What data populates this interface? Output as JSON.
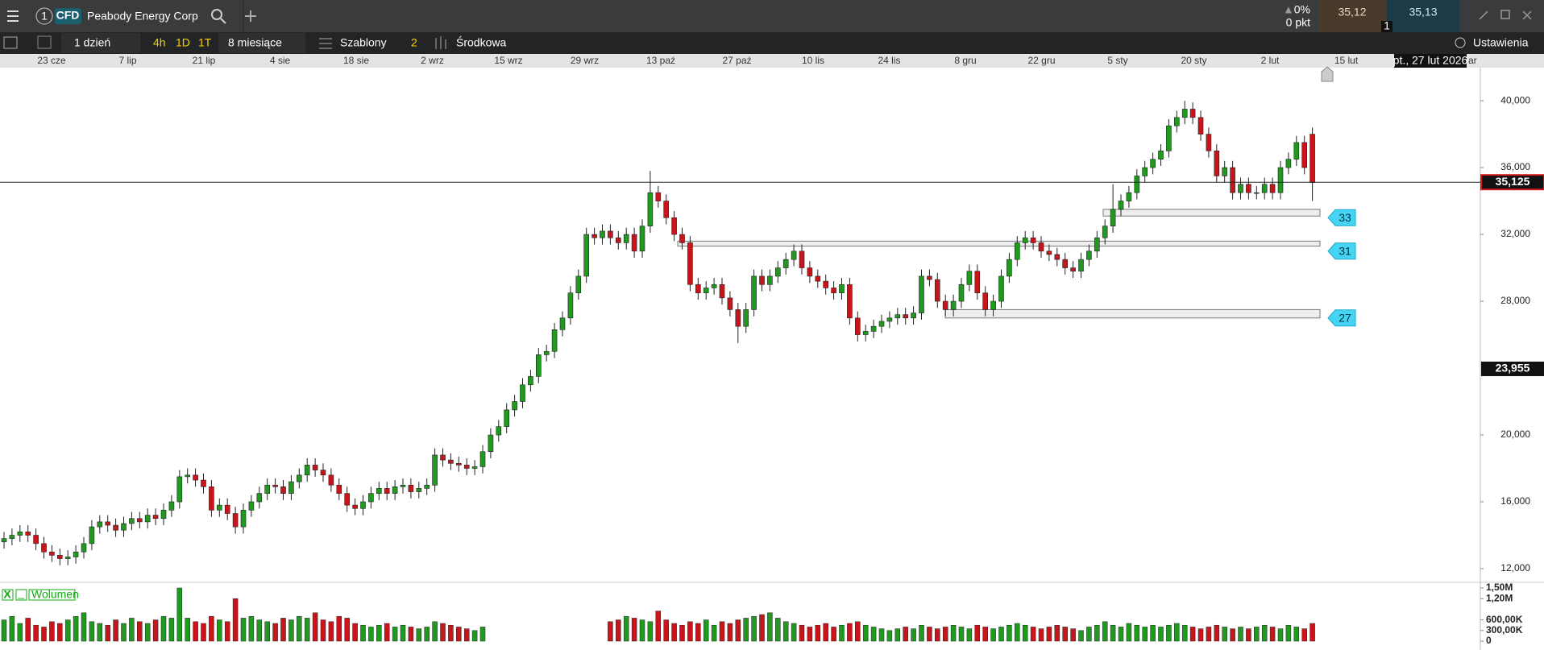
{
  "header": {
    "menu_number": "1",
    "instrument_type": "CFD",
    "instrument_name": "Peabody Energy Corp",
    "change_percent": "0%",
    "change_points": "0 pkt",
    "sell_price": "35,12",
    "buy_price": "35,13",
    "quantity": "1"
  },
  "toolbar": {
    "interval": "1 dzień",
    "quick_intervals": [
      "4h",
      "1D",
      "1T"
    ],
    "range": "8 miesiące",
    "templates": "Szablony",
    "indicator_count": "2",
    "chart_type": "Środkowa",
    "settings": "Ustawienia"
  },
  "chart_data": {
    "type": "candlestick",
    "x_tick_labels": [
      "23 cze",
      "7 lip",
      "21 lip",
      "4 sie",
      "18 sie",
      "2 wrz",
      "15 wrz",
      "29 wrz",
      "13 paź",
      "27 paź",
      "10 lis",
      "24 lis",
      "8 gru",
      "22 gru",
      "5 sty",
      "20 sty",
      "2 lut",
      "15 lut"
    ],
    "cursor_date": "pt., 27 lut 2026",
    "cursor_overflow": "ar",
    "ylim": [
      11.18,
      41.98
    ],
    "yticks": [
      {
        "value": 12,
        "label": "12,000"
      },
      {
        "value": 16,
        "label": "16,000"
      },
      {
        "value": 20,
        "label": "20,000"
      },
      {
        "value": 28,
        "label": "28,000"
      },
      {
        "value": 32,
        "label": "32,000"
      },
      {
        "value": 36,
        "label": "36,000"
      },
      {
        "value": 40,
        "label": "40,000"
      }
    ],
    "last_price": {
      "value": 35.125,
      "label": "35,125"
    },
    "crosshair_price": {
      "value": 23.955,
      "label": "23,955"
    },
    "up_color": "#1f9a1f",
    "down_color": "#c8151b",
    "zones": [
      {
        "level": 33,
        "top": 33.5,
        "bottom": 33.1
      },
      {
        "level": 31,
        "top": 31.6,
        "bottom": 31.3
      },
      {
        "level": 27,
        "top": 27.5,
        "bottom": 27.0
      }
    ],
    "open": [
      13.6,
      13.8,
      14.0,
      14.2,
      14.0,
      13.5,
      13.0,
      12.8,
      12.6,
      12.7,
      13.0,
      13.5,
      14.5,
      14.8,
      14.6,
      14.3,
      14.7,
      15.0,
      14.8,
      15.2,
      15.0,
      15.5,
      16.0,
      17.5,
      17.6,
      17.3,
      16.9,
      15.5,
      15.8,
      15.3,
      14.5,
      15.5,
      16.0,
      16.5,
      17.0,
      16.9,
      16.5,
      17.2,
      17.6,
      18.2,
      17.9,
      17.6,
      17.0,
      16.5,
      15.8,
      15.6,
      16.0,
      16.5,
      16.8,
      16.5,
      16.9,
      17.0,
      16.6,
      16.8,
      17.0,
      18.8,
      18.5,
      18.3,
      18.2,
      18.0,
      18.1,
      19.0,
      20.0,
      20.5,
      21.5,
      22.0,
      23.0,
      23.5,
      24.8,
      25.0,
      26.3,
      27.0,
      28.5,
      29.5,
      32.0,
      31.8,
      32.2,
      31.8,
      31.5,
      32.0,
      31.0,
      32.5,
      34.5,
      34.0,
      33.0,
      32.0,
      31.5,
      29.0,
      28.5,
      28.8,
      29.0,
      28.2,
      27.5,
      26.5,
      27.5,
      29.5,
      29.0,
      29.5,
      30.0,
      30.5,
      31.0,
      30.0,
      29.5,
      29.2,
      28.8,
      28.5,
      29.0,
      27.0,
      26.0,
      26.2,
      26.5,
      26.8,
      27.0,
      27.2,
      27.0,
      27.3,
      29.5,
      29.3,
      28.0,
      27.5,
      28.0,
      29.0,
      29.8,
      28.5,
      27.5,
      28.0,
      29.5,
      30.5,
      31.5,
      31.8,
      31.5,
      31.0,
      30.8,
      30.5,
      30.0,
      29.8,
      30.5,
      31.0,
      31.8,
      32.5,
      33.5,
      34.0,
      34.5,
      35.5,
      36.0,
      36.5,
      37.0,
      38.5,
      39.0,
      39.5,
      39.0,
      38.0,
      37.0,
      35.5,
      36.0,
      34.5,
      35.0,
      34.5,
      34.5,
      35.0,
      34.5,
      36.0,
      36.5,
      37.5,
      38.0
    ],
    "high": [
      14.2,
      14.4,
      14.6,
      14.6,
      14.4,
      13.9,
      13.4,
      13.2,
      13.1,
      13.4,
      13.9,
      14.9,
      15.2,
      15.2,
      15.0,
      15.1,
      15.4,
      15.4,
      15.6,
      15.6,
      15.9,
      16.4,
      17.9,
      18.0,
      18.0,
      17.7,
      17.3,
      16.2,
      16.2,
      15.7,
      15.9,
      16.4,
      16.9,
      17.4,
      17.4,
      17.3,
      17.6,
      18.0,
      18.6,
      18.6,
      18.3,
      18.0,
      17.4,
      16.9,
      16.2,
      16.4,
      16.9,
      17.2,
      17.2,
      17.3,
      17.4,
      17.4,
      17.2,
      17.4,
      19.2,
      19.2,
      18.9,
      18.7,
      18.6,
      18.5,
      19.4,
      20.4,
      20.9,
      21.9,
      22.4,
      23.4,
      23.9,
      25.2,
      25.4,
      26.7,
      27.4,
      28.9,
      29.9,
      32.4,
      32.4,
      32.6,
      32.6,
      32.2,
      32.4,
      32.4,
      32.9,
      35.8,
      34.9,
      34.4,
      33.4,
      32.4,
      31.9,
      29.4,
      29.2,
      29.4,
      29.4,
      28.6,
      27.9,
      27.9,
      29.9,
      29.9,
      29.9,
      30.4,
      30.9,
      31.4,
      31.4,
      30.4,
      29.9,
      29.6,
      29.2,
      29.4,
      29.4,
      27.4,
      26.6,
      26.9,
      27.2,
      27.4,
      27.6,
      27.6,
      27.7,
      29.9,
      29.9,
      29.7,
      28.4,
      28.4,
      29.4,
      30.2,
      30.2,
      28.9,
      28.4,
      29.9,
      30.9,
      31.9,
      32.2,
      32.2,
      31.9,
      31.4,
      31.2,
      30.9,
      30.4,
      30.9,
      31.4,
      32.2,
      32.9,
      35.0,
      34.4,
      34.9,
      35.9,
      36.4,
      36.9,
      37.4,
      38.9,
      39.4,
      40.0,
      39.9,
      39.4,
      38.4,
      37.4,
      36.4,
      36.4,
      35.4,
      35.4,
      34.9,
      35.4,
      35.4,
      36.4,
      36.9,
      37.9,
      37.9,
      38.4
    ],
    "low": [
      13.2,
      13.4,
      13.6,
      13.6,
      13.1,
      12.6,
      12.4,
      12.2,
      12.2,
      12.3,
      12.6,
      13.1,
      14.1,
      14.2,
      13.9,
      13.9,
      14.3,
      14.4,
      14.4,
      14.6,
      14.6,
      15.1,
      15.6,
      17.1,
      16.9,
      16.5,
      15.1,
      15.1,
      14.9,
      14.1,
      14.1,
      15.1,
      15.6,
      16.1,
      16.5,
      16.1,
      16.1,
      16.8,
      17.2,
      17.5,
      17.2,
      16.6,
      16.1,
      15.4,
      15.2,
      15.2,
      15.6,
      16.1,
      16.1,
      16.1,
      16.5,
      16.2,
      16.2,
      16.4,
      16.6,
      18.1,
      17.9,
      17.8,
      17.6,
      17.6,
      17.7,
      18.6,
      19.6,
      20.1,
      21.1,
      21.6,
      22.6,
      23.1,
      24.4,
      24.6,
      25.9,
      26.6,
      28.1,
      29.1,
      31.4,
      31.4,
      31.4,
      31.1,
      31.1,
      30.6,
      30.6,
      32.1,
      33.6,
      32.6,
      31.6,
      31.1,
      28.6,
      28.1,
      28.1,
      28.4,
      27.8,
      27.1,
      25.5,
      26.1,
      27.1,
      28.6,
      28.6,
      29.1,
      29.6,
      30.1,
      29.6,
      29.1,
      28.8,
      28.4,
      28.1,
      28.1,
      26.6,
      25.6,
      25.6,
      25.8,
      26.1,
      26.4,
      26.6,
      26.6,
      26.6,
      26.9,
      28.9,
      27.6,
      27.1,
      27.1,
      27.6,
      28.6,
      28.1,
      27.1,
      27.1,
      27.6,
      29.1,
      30.1,
      31.1,
      31.1,
      30.6,
      30.4,
      30.1,
      29.6,
      29.4,
      29.4,
      30.1,
      30.6,
      31.4,
      32.1,
      33.1,
      33.6,
      34.1,
      35.1,
      35.6,
      36.1,
      36.6,
      38.1,
      38.6,
      38.6,
      37.6,
      36.6,
      35.1,
      35.1,
      34.1,
      34.1,
      34.1,
      34.1,
      34.1,
      34.1,
      34.1,
      35.6,
      36.1,
      35.6,
      34.0
    ],
    "close": [
      13.8,
      14.0,
      14.2,
      14.0,
      13.5,
      13.0,
      12.8,
      12.6,
      12.7,
      13.0,
      13.5,
      14.5,
      14.8,
      14.6,
      14.3,
      14.7,
      15.0,
      14.8,
      15.2,
      15.0,
      15.5,
      16.0,
      17.5,
      17.6,
      17.3,
      16.9,
      15.5,
      15.8,
      15.3,
      14.5,
      15.5,
      16.0,
      16.5,
      17.0,
      16.9,
      16.5,
      17.2,
      17.6,
      18.2,
      17.9,
      17.6,
      17.0,
      16.5,
      15.8,
      15.6,
      16.0,
      16.5,
      16.8,
      16.5,
      16.9,
      17.0,
      16.6,
      16.8,
      17.0,
      18.8,
      18.5,
      18.3,
      18.2,
      18.0,
      18.1,
      19.0,
      20.0,
      20.5,
      21.5,
      22.0,
      23.0,
      23.5,
      24.8,
      25.0,
      26.3,
      27.0,
      28.5,
      29.5,
      32.0,
      31.8,
      32.2,
      31.8,
      31.5,
      32.0,
      31.0,
      32.5,
      34.5,
      34.0,
      33.0,
      32.0,
      31.5,
      29.0,
      28.5,
      28.8,
      29.0,
      28.2,
      27.5,
      26.5,
      27.5,
      29.5,
      29.0,
      29.5,
      30.0,
      30.5,
      31.0,
      30.0,
      29.5,
      29.2,
      28.8,
      28.5,
      29.0,
      27.0,
      26.0,
      26.2,
      26.5,
      26.8,
      27.0,
      27.2,
      27.0,
      27.3,
      29.5,
      29.3,
      28.0,
      27.5,
      28.0,
      29.0,
      29.8,
      28.5,
      27.5,
      28.0,
      29.5,
      30.5,
      31.5,
      31.8,
      31.5,
      31.0,
      30.8,
      30.5,
      30.0,
      29.8,
      30.5,
      31.0,
      31.8,
      32.5,
      33.5,
      34.0,
      34.5,
      35.5,
      36.0,
      36.5,
      37.0,
      38.5,
      39.0,
      39.5,
      39.0,
      38.0,
      37.0,
      35.5,
      36.0,
      34.5,
      35.0,
      34.5,
      34.5,
      35.0,
      34.5,
      36.0,
      36.5,
      37.5,
      36.0,
      35.1
    ],
    "volume": [
      600000,
      700000,
      500000,
      650000,
      450000,
      400000,
      550000,
      500000,
      600000,
      700000,
      800000,
      550000,
      500000,
      450000,
      600000,
      500000,
      650000,
      550000,
      500000,
      600000,
      700000,
      650000,
      1500000,
      650000,
      550000,
      500000,
      700000,
      600000,
      550000,
      1200000,
      650000,
      700000,
      600000,
      550000,
      500000,
      650000,
      600000,
      700000,
      650000,
      800000,
      600000,
      550000,
      700000,
      650000,
      500000,
      450000,
      400000,
      450000,
      500000,
      400000,
      450000,
      400000,
      350000,
      400000,
      550000,
      500000,
      450000,
      400000,
      350000,
      300000,
      400000,
      null,
      null,
      null,
      null,
      null,
      null,
      null,
      null,
      null,
      null,
      null,
      null,
      null,
      null,
      null,
      550000,
      600000,
      700000,
      650000,
      600000,
      550000,
      850000,
      600000,
      500000,
      450000,
      550000,
      500000,
      600000,
      450000,
      550000,
      500000,
      600000,
      650000,
      700000,
      750000,
      800000,
      650000,
      550000,
      500000,
      450000,
      400000,
      450000,
      500000,
      400000,
      450000,
      500000,
      550000,
      450000,
      400000,
      350000,
      300000,
      350000,
      400000,
      350000,
      450000,
      400000,
      350000,
      400000,
      450000,
      400000,
      350000,
      450000,
      400000,
      350000,
      400000,
      450000,
      500000,
      450000,
      400000,
      350000,
      400000,
      450000,
      400000,
      350000,
      300000,
      400000,
      450000,
      550000,
      450000,
      400000,
      500000,
      450000,
      400000,
      450000,
      400000,
      450000,
      500000,
      450000,
      400000,
      350000,
      400000,
      450000,
      400000,
      350000,
      400000,
      350000,
      400000,
      450000,
      400000,
      350000,
      450000,
      400000,
      350000,
      500000
    ],
    "volume_panel": {
      "title": "Wolumen",
      "close_button": "X",
      "minimize_button": "_"
    },
    "volume_ylim": [
      -250000,
      1660000
    ],
    "volume_yticks": [
      0,
      {
        "value": 300000,
        "label": "300,00K"
      },
      {
        "value": 600000,
        "label": "600,00K"
      },
      {
        "value": 1200000,
        "label": "1,20M"
      },
      {
        "value": 1500000,
        "label": "1,50M"
      }
    ]
  }
}
